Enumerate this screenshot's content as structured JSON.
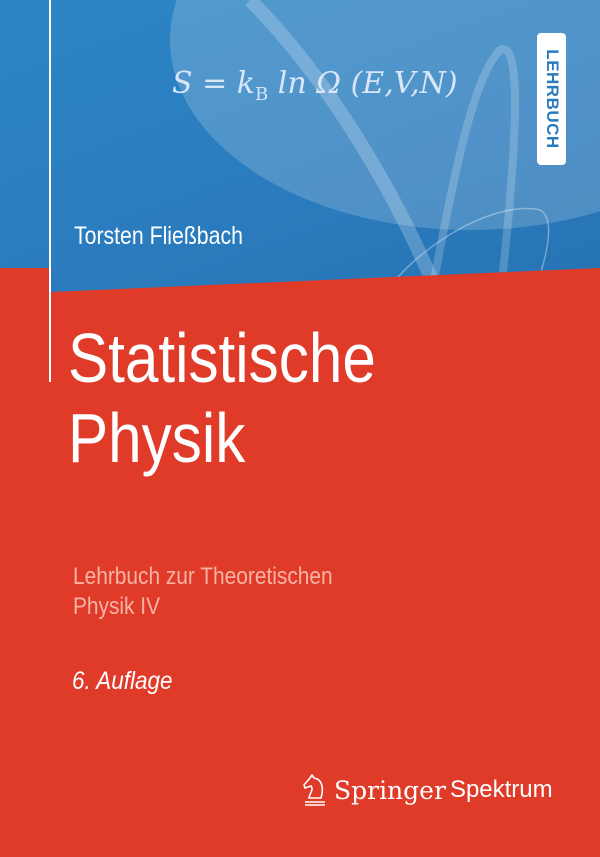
{
  "cover": {
    "formula": {
      "lhs": "S = k",
      "sub": "B",
      "rhs": " ln Ω (E,V,N)"
    },
    "badge": "LEHRBUCH",
    "author": "Torsten Fließbach",
    "title_line1": "Statistische",
    "title_line2": "Physik",
    "subtitle_line1": "Lehrbuch zur Theoretischen",
    "subtitle_line2": "Physik IV",
    "edition": "6. Auflage",
    "publisher": {
      "name": "Springer",
      "imprint": "Spektrum",
      "logo_icon": "knight-chess-icon"
    },
    "colors": {
      "blue": "#2a7bbd",
      "red": "#e03a29",
      "subtitle": "#f8b3a4"
    }
  }
}
